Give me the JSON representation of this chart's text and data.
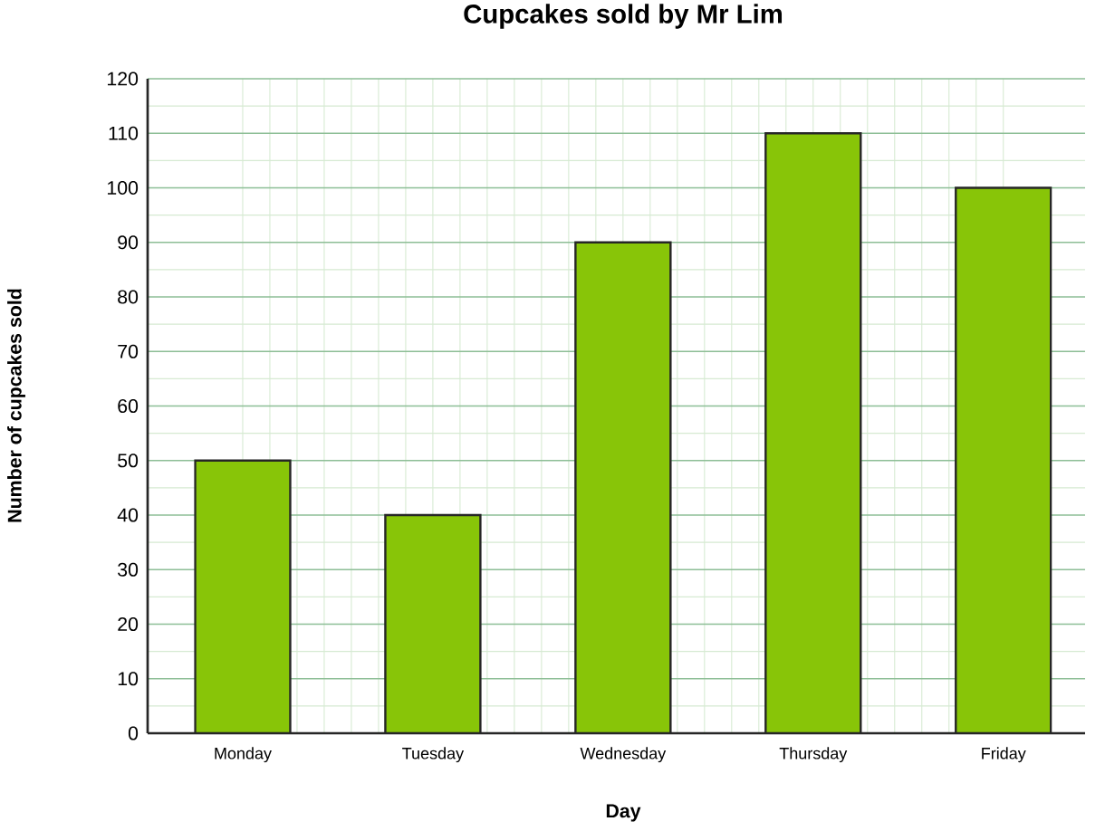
{
  "chart_data": {
    "type": "bar",
    "title": "Cupcakes sold by Mr Lim",
    "xlabel": "Day",
    "ylabel": "Number of cupcakes sold",
    "categories": [
      "Monday",
      "Tuesday",
      "Wednesday",
      "Thursday",
      "Friday"
    ],
    "values": [
      50,
      40,
      90,
      110,
      100
    ],
    "color": "#88c508",
    "ylim": [
      0,
      120
    ],
    "yticks": [
      0,
      10,
      20,
      30,
      40,
      50,
      60,
      70,
      80,
      90,
      100,
      110,
      120
    ],
    "grid": true
  }
}
